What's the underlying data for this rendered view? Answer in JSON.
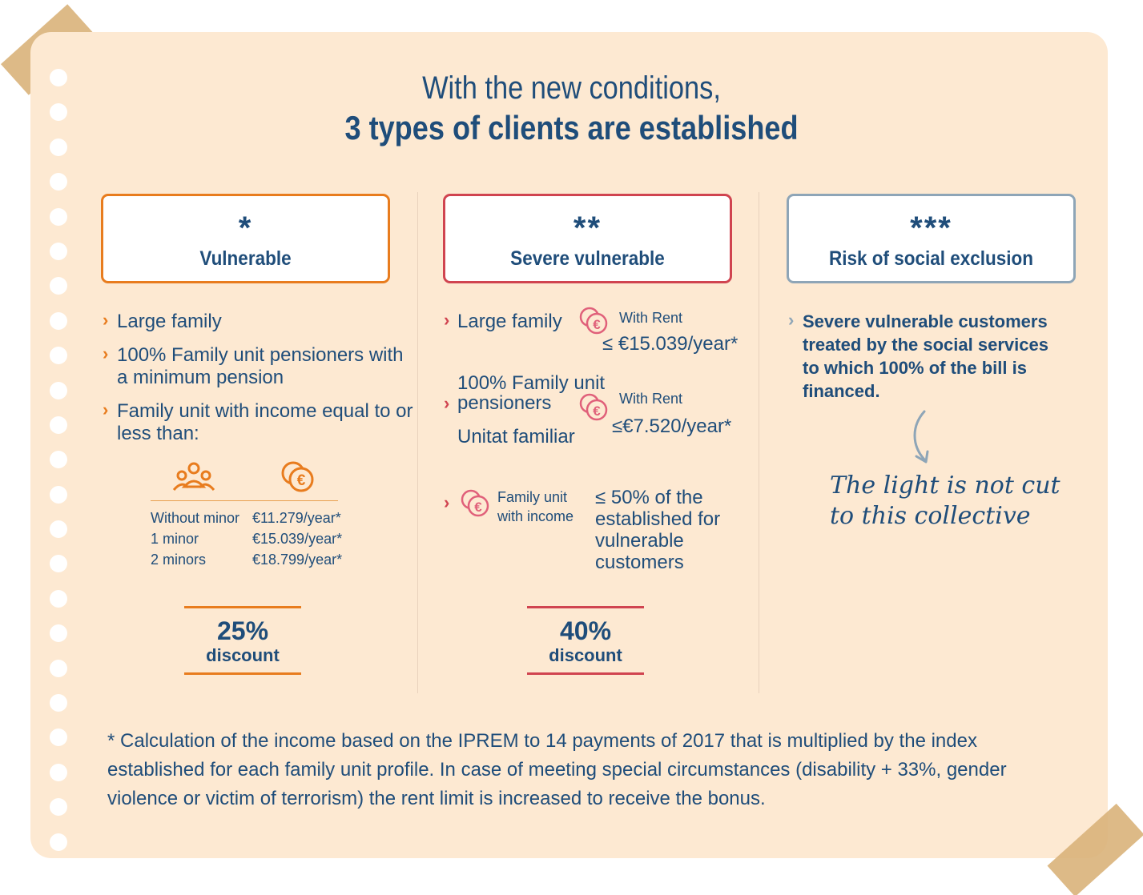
{
  "title": {
    "line1": "With the new conditions,",
    "line2": "3 types of clients are established"
  },
  "colors": {
    "orange": "#e87c1e",
    "red": "#d04450",
    "grey": "#8ea5b7",
    "navy": "#1f4d7a",
    "paper": "#fde9d2"
  },
  "categories": [
    {
      "stars": "*",
      "name": "Vulnerable"
    },
    {
      "stars": "**",
      "name": "Severe vulnerable"
    },
    {
      "stars": "***",
      "name": "Risk of social exclusion"
    }
  ],
  "vulnerable": {
    "bullets": [
      "Large family",
      "100% Family unit pensioners with a minimum pension",
      "Family unit with income equal to or less than:"
    ],
    "icons": [
      "family-icon",
      "coins-icon"
    ],
    "income_rows": [
      {
        "label": "Without minor",
        "value": "€11.279/year*"
      },
      {
        "label": "1 minor",
        "value": "€15.039/year*"
      },
      {
        "label": "2 minors",
        "value": "€18.799/year*"
      }
    ],
    "discount": {
      "pct": "25%",
      "label": "discount"
    }
  },
  "severe": {
    "item1": {
      "label": "Large family",
      "rent_label": "With Rent",
      "rent_value": "≤ €15.039/year*"
    },
    "item2": {
      "line1": "100% Family unit",
      "line2": "pensioners",
      "line3": "Unitat familiar",
      "rent_label": "With Rent",
      "rent_value": "≤€7.520/year*"
    },
    "item3": {
      "label_line1": "Family unit",
      "label_line2": "with income",
      "value_line1": "≤  50% of the",
      "value_line2": "established for",
      "value_line3": "vulnerable",
      "value_line4": "customers"
    },
    "discount": {
      "pct": "40%",
      "label": "discount"
    }
  },
  "risk": {
    "bullet_lines": [
      "Severe vulnerable customers",
      "treated by the social services",
      "to which 100% of the bill is",
      "financed."
    ],
    "note_line1": "The light is not cut",
    "note_line2": "to this collective"
  },
  "footnote": "* Calculation of the income based on the IPREM to 14 payments of 2017 that is multiplied by the index established for each family unit profile. In case of meeting special circumstances (disability + 33%, gender violence or victim of terrorism) the rent limit is increased to receive the bonus."
}
